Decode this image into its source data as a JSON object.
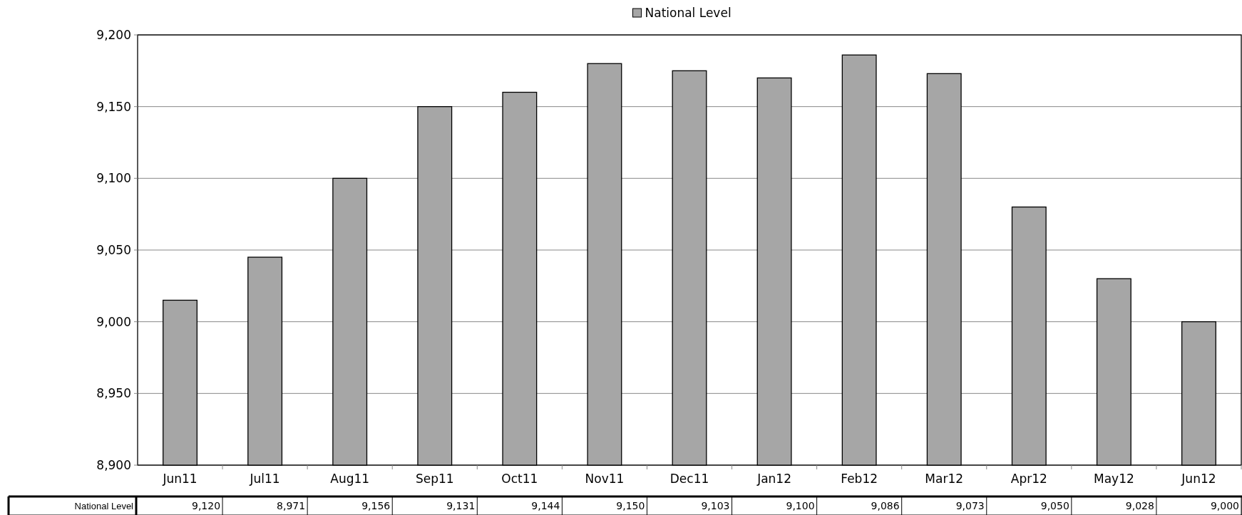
{
  "chart_data": {
    "type": "bar",
    "categories": [
      "Jun11",
      "Jul11",
      "Aug11",
      "Sep11",
      "Oct11",
      "Nov11",
      "Dec11",
      "Jan12",
      "Feb12",
      "Mar12",
      "Apr12",
      "May12",
      "Jun12"
    ],
    "series": [
      {
        "name": "National Level",
        "color": "#a6a6a6",
        "values": [
          9015,
          9045,
          9100,
          9150,
          9160,
          9180,
          9175,
          9170,
          9186,
          9173,
          9080,
          9030,
          9000
        ]
      }
    ],
    "annotations": [
      "9,120",
      "8,971",
      "9,156",
      "9,131",
      "9,144",
      "9,150",
      "9,103",
      "9,100",
      "9,086",
      "9,073",
      "9,050",
      "9,028",
      "9,000"
    ],
    "ylim": [
      8900,
      9200
    ],
    "yticks": [
      {
        "value": 8900,
        "label": "8,900"
      },
      {
        "value": 8950,
        "label": "8,950"
      },
      {
        "value": 9000,
        "label": "9,000"
      },
      {
        "value": 9050,
        "label": "9,050"
      },
      {
        "value": 9100,
        "label": "9,100"
      },
      {
        "value": 9150,
        "label": "9,150"
      },
      {
        "value": 9200,
        "label": "9,200"
      }
    ],
    "grid": "y",
    "legend": "top"
  }
}
